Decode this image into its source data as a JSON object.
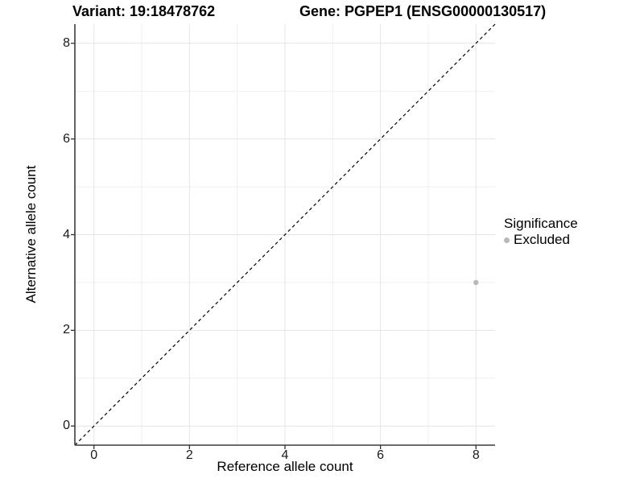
{
  "chart_data": {
    "type": "scatter",
    "title_left": "Variant: 19:18478762",
    "title_right": "Gene: PGPEP1 (ENSG00000130517)",
    "xlabel": "Reference allele count",
    "ylabel": "Alternative allele count",
    "xlim": [
      -0.4,
      8.4
    ],
    "ylim": [
      -0.4,
      8.4
    ],
    "xticks": [
      0,
      2,
      4,
      6,
      8
    ],
    "yticks": [
      0,
      2,
      4,
      6,
      8
    ],
    "x_minor": [
      1,
      3,
      5,
      7
    ],
    "y_minor": [
      1,
      3,
      5,
      7
    ],
    "grid": "on",
    "identity_line": true,
    "points": [
      {
        "x": 8,
        "y": 3,
        "significance": "Excluded"
      }
    ],
    "legend": {
      "title": "Significance",
      "position": "right",
      "items": [
        {
          "label": "Excluded",
          "color": "#b8b8b8"
        }
      ]
    },
    "colors": {
      "point": "#b8b8b8",
      "grid_major": "#e4e4e4",
      "grid_minor": "#efefef",
      "axis_line": "#3c3c3c",
      "tick_mark": "#333333",
      "identity_line": "#000000"
    }
  }
}
